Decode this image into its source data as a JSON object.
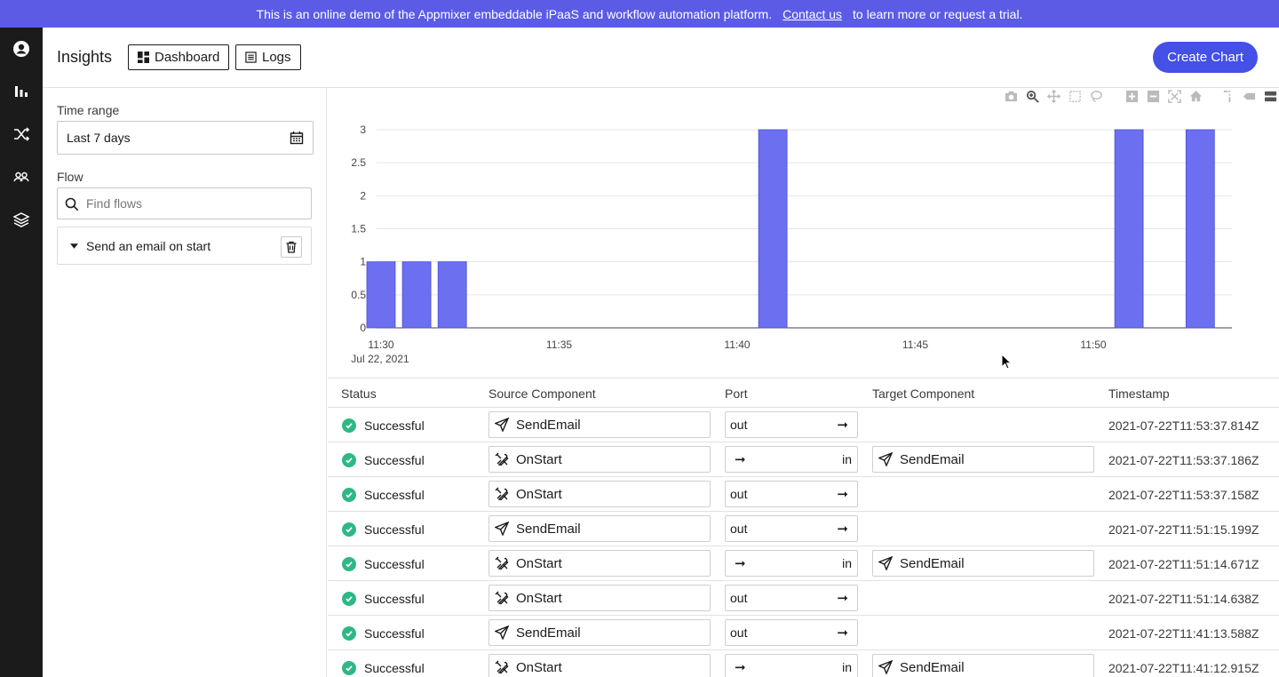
{
  "banner": {
    "text_before": "This is an online demo of the Appmixer embeddable iPaaS and workflow automation platform.",
    "link": "Contact us",
    "text_after": "to learn more or request a trial."
  },
  "rail": {
    "items": [
      {
        "name": "account-icon"
      },
      {
        "name": "insights-icon"
      },
      {
        "name": "flows-icon"
      },
      {
        "name": "people-icon"
      },
      {
        "name": "layers-icon"
      }
    ]
  },
  "header": {
    "title": "Insights",
    "dashboard_label": "Dashboard",
    "logs_label": "Logs",
    "create_label": "Create Chart"
  },
  "filters": {
    "time_range_label": "Time range",
    "time_range_value": "Last 7 days",
    "flow_label": "Flow",
    "find_placeholder": "Find flows",
    "flow_item": "Send an email on start"
  },
  "chart_data": {
    "type": "bar",
    "x": [
      "11:30",
      "11:31",
      "11:32",
      "11:41",
      "11:51",
      "11:53"
    ],
    "values": [
      1,
      1,
      1,
      3,
      3,
      3
    ],
    "x_ticks": [
      "11:30",
      "11:35",
      "11:40",
      "11:45",
      "11:50"
    ],
    "x_tick_sub": "Jul 22, 2021",
    "y_ticks": [
      "0",
      "0.5",
      "1",
      "1.5",
      "2",
      "2.5",
      "3"
    ],
    "ylim": [
      0,
      3
    ],
    "grid": true,
    "color": "#6b6ff0"
  },
  "table": {
    "columns": [
      "Status",
      "Source Component",
      "Port",
      "Target Component",
      "Timestamp"
    ],
    "rows": [
      {
        "status": "Successful",
        "source": "SendEmail",
        "source_icon": "send-icon",
        "port": "out",
        "dir": "out",
        "target": "",
        "ts": "2021-07-22T11:53:37.814Z"
      },
      {
        "status": "Successful",
        "source": "OnStart",
        "source_icon": "tools-icon",
        "port": "in",
        "dir": "in",
        "target": "SendEmail",
        "ts": "2021-07-22T11:53:37.186Z"
      },
      {
        "status": "Successful",
        "source": "OnStart",
        "source_icon": "tools-icon",
        "port": "out",
        "dir": "out",
        "target": "",
        "ts": "2021-07-22T11:53:37.158Z"
      },
      {
        "status": "Successful",
        "source": "SendEmail",
        "source_icon": "send-icon",
        "port": "out",
        "dir": "out",
        "target": "",
        "ts": "2021-07-22T11:51:15.199Z"
      },
      {
        "status": "Successful",
        "source": "OnStart",
        "source_icon": "tools-icon",
        "port": "in",
        "dir": "in",
        "target": "SendEmail",
        "ts": "2021-07-22T11:51:14.671Z"
      },
      {
        "status": "Successful",
        "source": "OnStart",
        "source_icon": "tools-icon",
        "port": "out",
        "dir": "out",
        "target": "",
        "ts": "2021-07-22T11:51:14.638Z"
      },
      {
        "status": "Successful",
        "source": "SendEmail",
        "source_icon": "send-icon",
        "port": "out",
        "dir": "out",
        "target": "",
        "ts": "2021-07-22T11:41:13.588Z"
      },
      {
        "status": "Successful",
        "source": "OnStart",
        "source_icon": "tools-icon",
        "port": "in",
        "dir": "in",
        "target": "SendEmail",
        "ts": "2021-07-22T11:41:12.915Z"
      }
    ]
  }
}
